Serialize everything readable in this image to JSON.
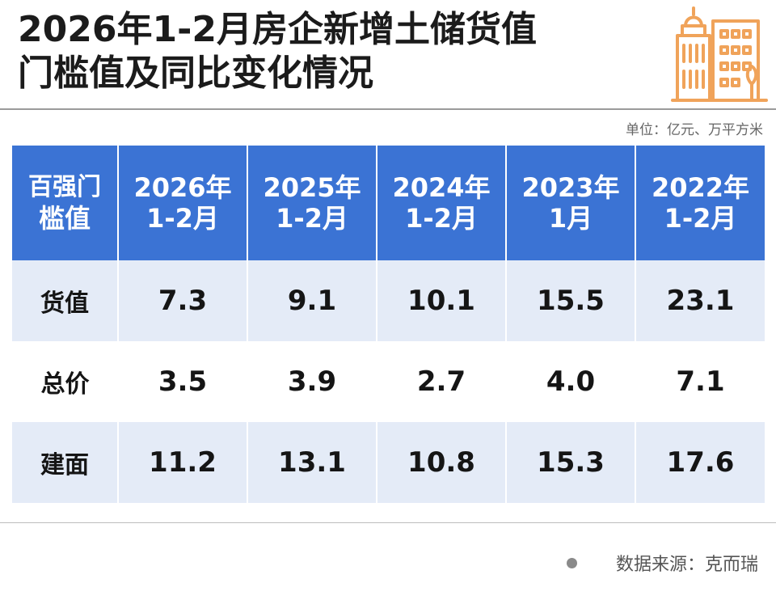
{
  "title": {
    "line1": "2026年1-2月房企新增土储货值",
    "line2": "门槛值及同比变化情况"
  },
  "icon": "building-icon",
  "colors": {
    "header": "#3b73d4",
    "shade": "#e4ebf7",
    "building": "#f0a35a"
  },
  "unit": "单位：亿元、万平方米",
  "source": "数据来源：克而瑞",
  "chart_data": {
    "type": "table",
    "corner_header": [
      "百强门",
      "槛值"
    ],
    "columns": [
      {
        "line1": "2026年",
        "line2": "1-2月"
      },
      {
        "line1": "2025年",
        "line2": "1-2月"
      },
      {
        "line1": "2024年",
        "line2": "1-2月"
      },
      {
        "line1": "2023年",
        "line2": "1月"
      },
      {
        "line1": "2022年",
        "line2": "1-2月"
      }
    ],
    "rows": [
      {
        "label": "货值",
        "values": [
          "7.3",
          "9.1",
          "10.1",
          "15.5",
          "23.1"
        ]
      },
      {
        "label": "总价",
        "values": [
          "3.5",
          "3.9",
          "2.7",
          "4.0",
          "7.1"
        ]
      },
      {
        "label": "建面",
        "values": [
          "11.2",
          "13.1",
          "10.8",
          "15.3",
          "17.6"
        ]
      }
    ]
  }
}
